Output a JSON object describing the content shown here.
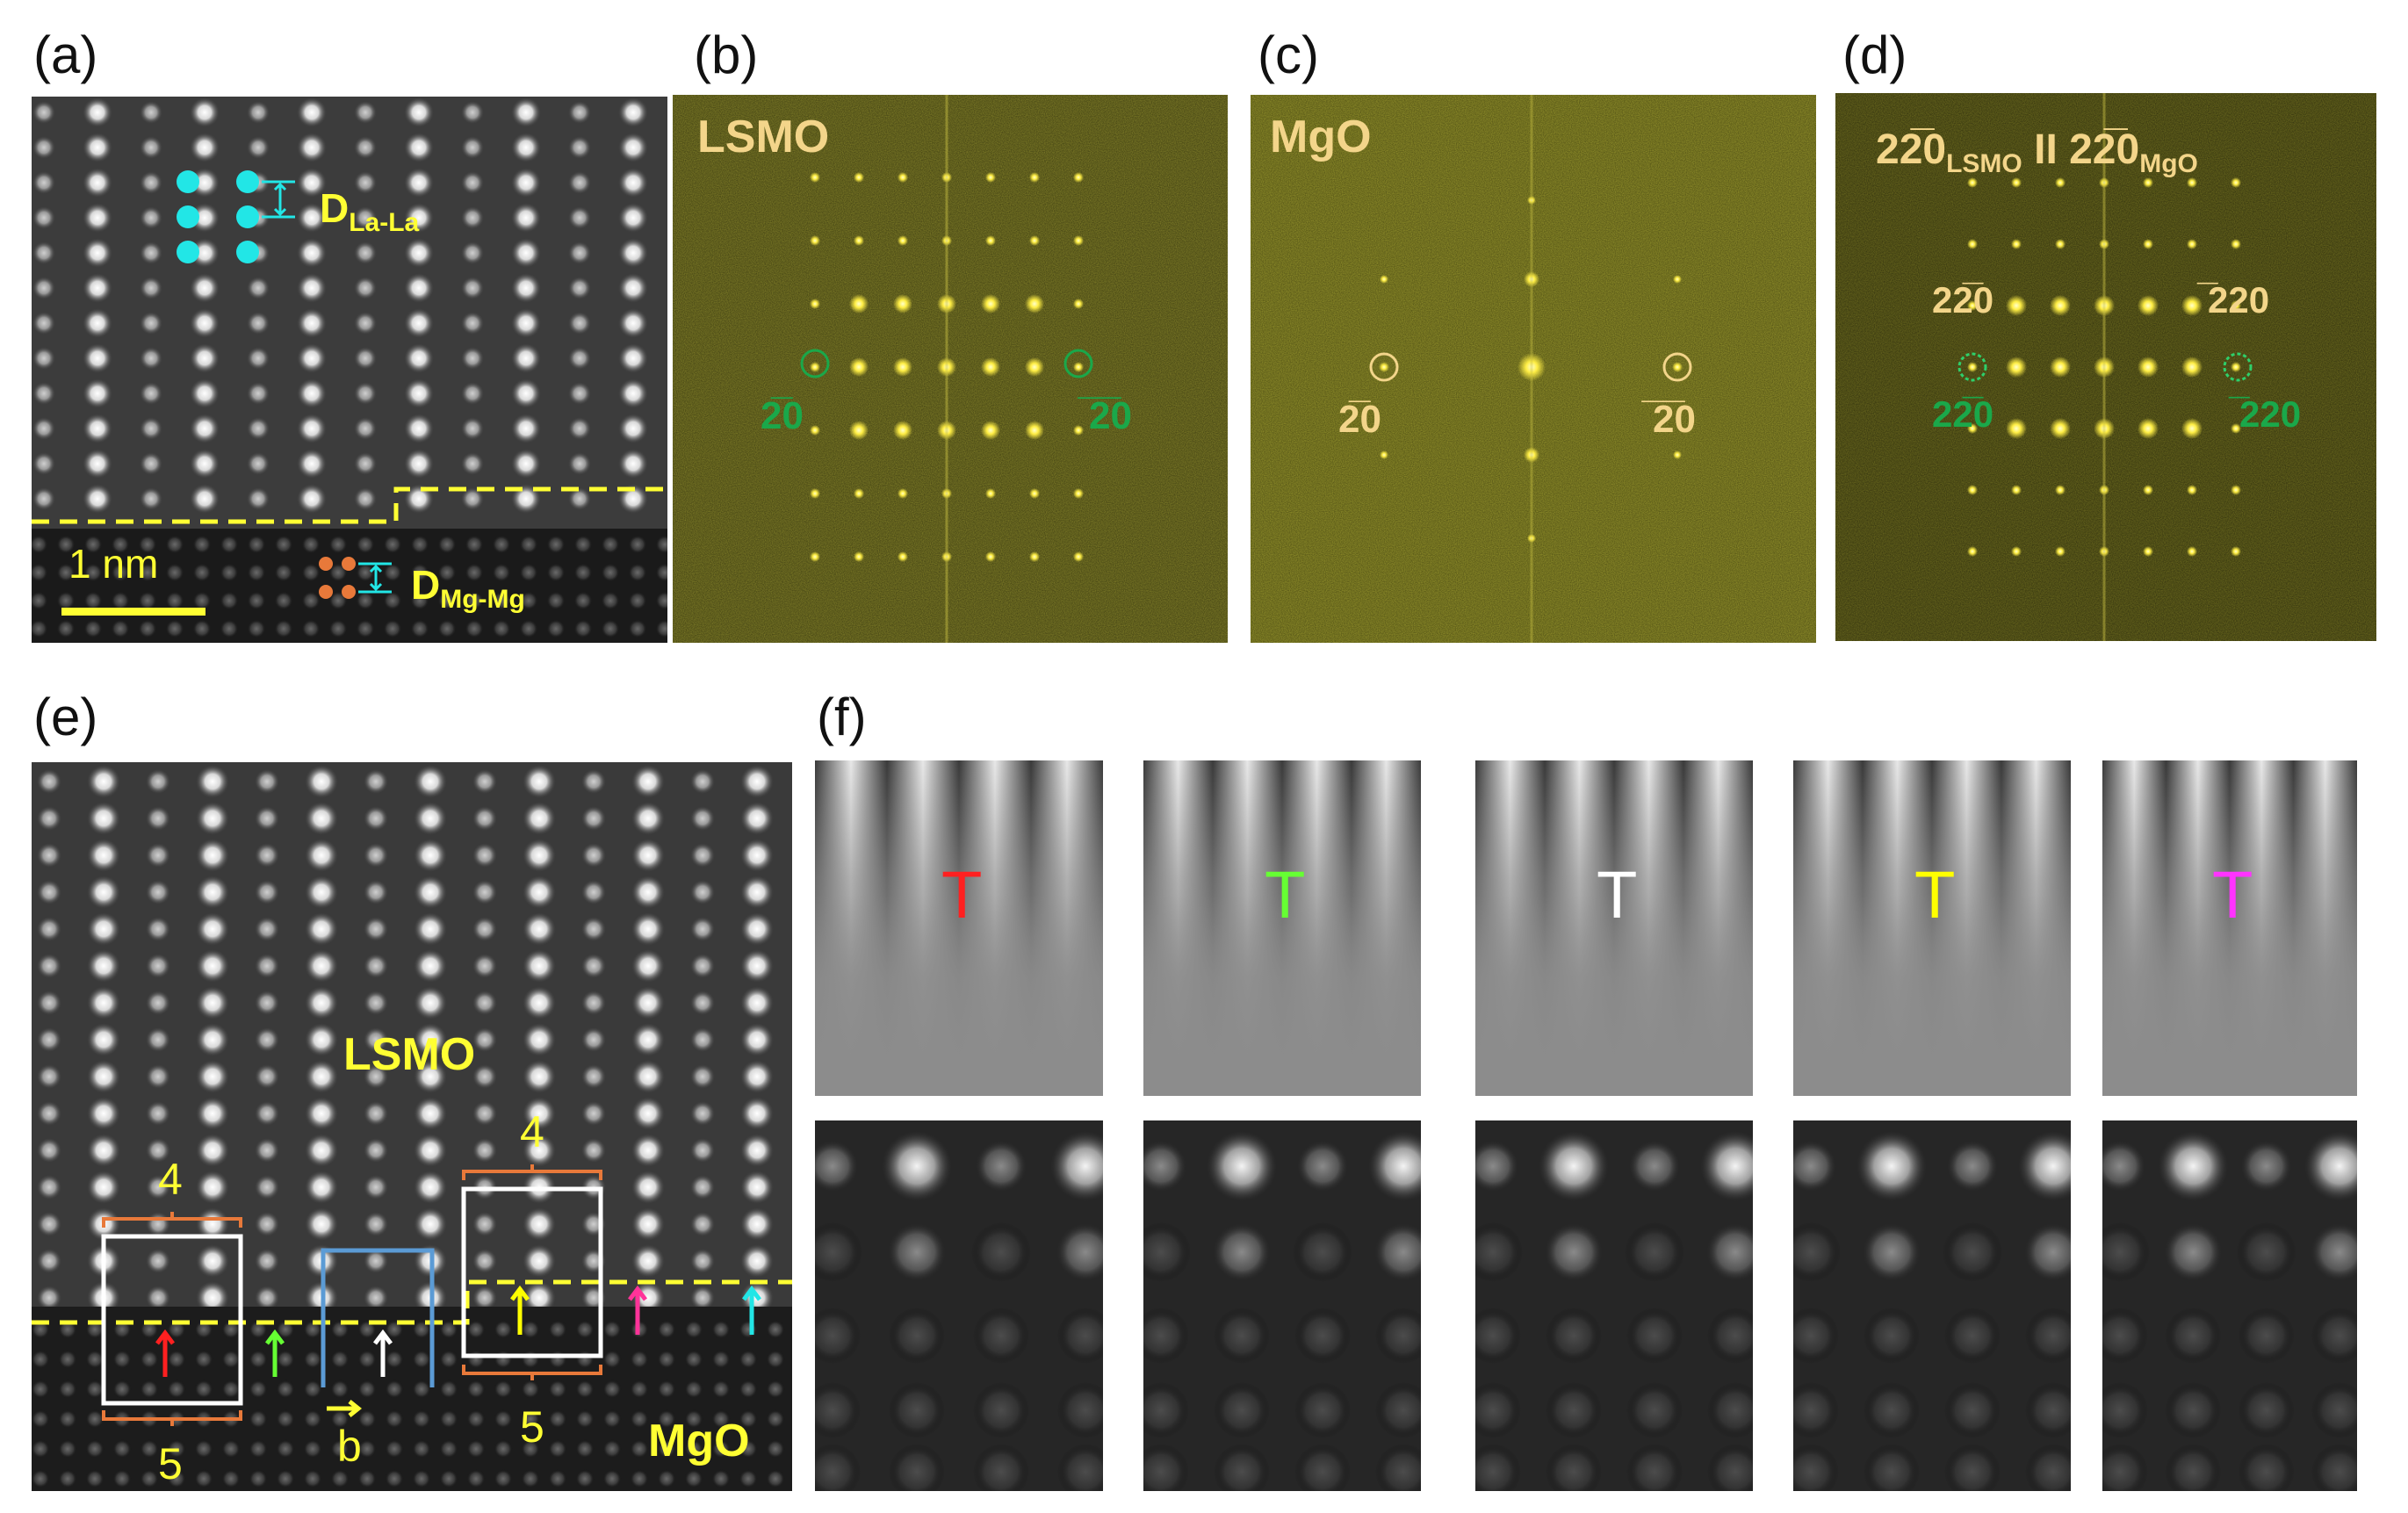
{
  "panels": {
    "a": {
      "label": "(a)",
      "d_lala": {
        "main": "D",
        "sub": "La-La"
      },
      "d_mgmg": {
        "main": "D",
        "sub": "Mg-Mg"
      },
      "scale": "1 nm"
    },
    "b": {
      "label": "(b)",
      "title": "LSMO",
      "spot_left": "2̅0",
      "spot_right": "̅2̅0"
    },
    "c": {
      "label": "(c)",
      "title": "MgO",
      "spot_left": "2̅0",
      "spot_right": "̅2̅0"
    },
    "d": {
      "label": "(d)",
      "title_a": "22̅0",
      "title_a_sub": "LSMO",
      "title_sep": " II ",
      "title_b": "22̅0",
      "title_b_sub": "MgO",
      "mg_left": "22̅0",
      "mg_right": "̅220",
      "ls_left": "22̅0",
      "ls_right": "̅220"
    },
    "e": {
      "label": "(e)",
      "lsmo": "LSMO",
      "mgo": "MgO",
      "top_left": "4",
      "bottom_left": "5",
      "top_right": "4",
      "bottom_right": "5",
      "b_label": "b"
    },
    "f": {
      "label": "(f)",
      "markers": [
        "T",
        "T",
        "T",
        "T",
        "T"
      ]
    }
  },
  "colors": {
    "yellow": "#ffff33",
    "cyan": "#22e6e6",
    "orange": "#e8793a",
    "green_spot": "#1aa84a",
    "fft_label": "#f3d58a",
    "blue_box": "#5b9bd5",
    "marker_colors": [
      "#ff2020",
      "#66ff33",
      "#ffffff",
      "#ffff00",
      "#ff33ff"
    ]
  }
}
